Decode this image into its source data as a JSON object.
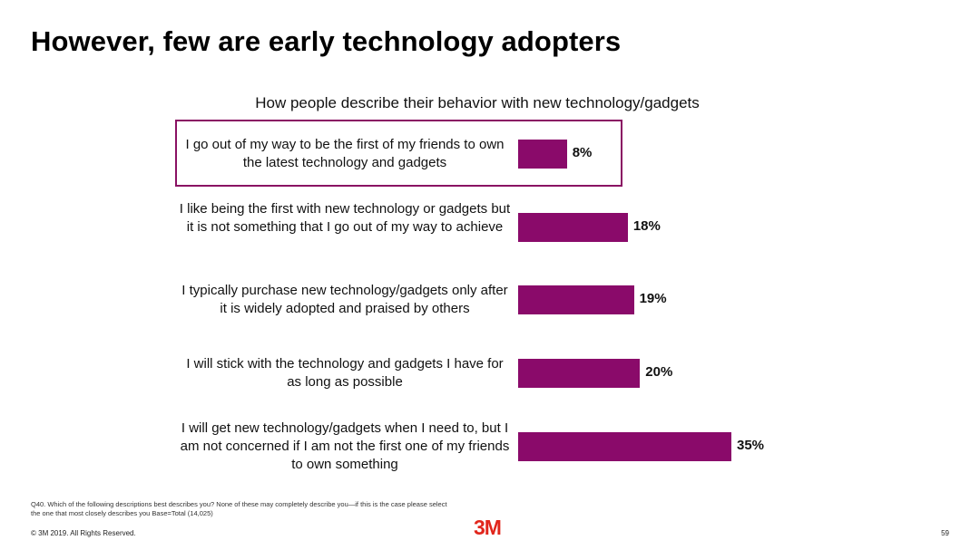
{
  "chart_data": {
    "type": "bar",
    "orientation": "horizontal",
    "title": "However, few are early technology adopters",
    "subtitle": "How people describe their behavior with new technology/gadgets",
    "categories": [
      "I go out of my way to be the first of my friends to own the latest technology and gadgets",
      "I like being the first with new technology or gadgets but it is not something that I go out of my way to achieve",
      "I typically purchase new technology/gadgets only after it is widely adopted and praised by others",
      "I will stick with the technology and gadgets I have for as long as possible",
      "I will get new technology/gadgets when I need to, but I am not concerned if I am not the first one of my friends to own something"
    ],
    "values": [
      8,
      18,
      19,
      20,
      35
    ],
    "value_labels": [
      "8%",
      "18%",
      "19%",
      "20%",
      "35%"
    ],
    "highlighted_index": 0,
    "xlabel": "",
    "ylabel": "",
    "grid": false
  },
  "colors": {
    "bar": "#8a0a6a",
    "highlight_border": "#8a1163",
    "logo": "#e1261c"
  },
  "footer": {
    "footnote": "Q40. Which of the following descriptions best describes you? None of these may completely describe you—if this is the case please select the one that most closely describes you Base=Total (14,025)",
    "copyright": "© 3M 2019.   All Rights Reserved.",
    "logo": "3M",
    "page_number": "59"
  }
}
